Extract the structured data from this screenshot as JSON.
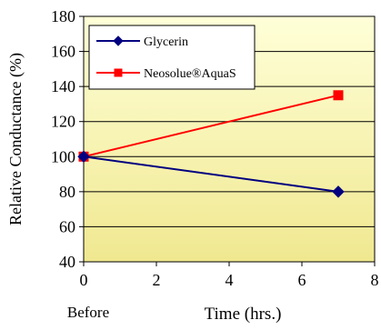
{
  "chart_data": {
    "type": "line",
    "title": "",
    "xlabel": "Time (hrs.)",
    "ylabel": "Relative Conductance (%)",
    "xlim": [
      0,
      8
    ],
    "ylim": [
      40,
      180
    ],
    "x_ticks": [
      "0",
      "2",
      "4",
      "6",
      "8"
    ],
    "y_ticks": [
      "40",
      "60",
      "80",
      "100",
      "120",
      "140",
      "160",
      "180"
    ],
    "x_annotation": "Before",
    "grid": "horizontal",
    "legend_position": "top-left",
    "series": [
      {
        "name": "Glycerin",
        "marker": "diamond",
        "color": "#000080",
        "x": [
          0,
          7
        ],
        "y": [
          100,
          80
        ]
      },
      {
        "name": "Neosolue®AquaS",
        "marker": "square",
        "color": "#ff0000",
        "x": [
          0,
          7
        ],
        "y": [
          100,
          135
        ]
      }
    ],
    "background_gradient": [
      "#ffffd8",
      "#f0e890"
    ]
  }
}
